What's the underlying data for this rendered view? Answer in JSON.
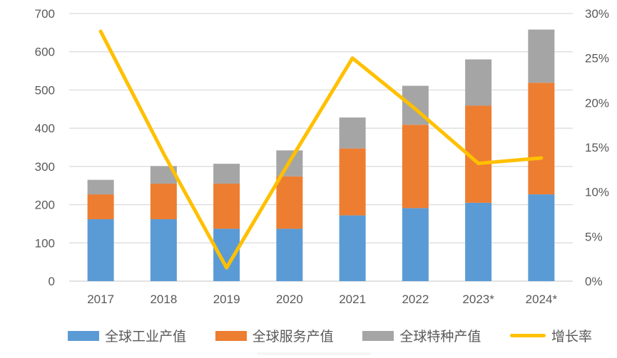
{
  "chart_data": {
    "type": "combo",
    "bar_mode": "stacked-column",
    "title": "",
    "categories": [
      "2017",
      "2018",
      "2019",
      "2020",
      "2021",
      "2022",
      "2023*",
      "2024*"
    ],
    "series": [
      {
        "name": "全球工业产值",
        "type": "bar",
        "color": "#5B9BD5",
        "axis": "left",
        "values": [
          162,
          162,
          137,
          137,
          172,
          191,
          205,
          227
        ]
      },
      {
        "name": "全球服务产值",
        "type": "bar",
        "color": "#ED7D31",
        "axis": "left",
        "values": [
          65,
          93,
          118,
          137,
          175,
          218,
          254,
          292
        ]
      },
      {
        "name": "全球特种产值",
        "type": "bar",
        "color": "#A5A5A5",
        "axis": "left",
        "values": [
          38,
          46,
          52,
          68,
          81,
          102,
          121,
          139
        ]
      },
      {
        "name": "增长率",
        "type": "line",
        "color": "#FFC000",
        "axis": "right",
        "values": [
          28,
          14.3,
          1.5,
          13.4,
          25,
          19.3,
          13.2,
          13.8
        ],
        "unit": "%"
      }
    ],
    "stacked_totals": [
      265,
      301,
      307,
      342,
      428,
      511,
      580,
      658
    ],
    "left_axis": {
      "min": 0,
      "max": 700,
      "step": 100,
      "ticks": [
        "0",
        "100",
        "200",
        "300",
        "400",
        "500",
        "600",
        "700"
      ]
    },
    "right_axis": {
      "min": 0,
      "max": 30,
      "step": 5,
      "ticks": [
        "0%",
        "5%",
        "10%",
        "15%",
        "20%",
        "25%",
        "30%"
      ]
    },
    "legend": {
      "position": "bottom",
      "items": [
        {
          "label": "全球工业产值",
          "swatch": "bar",
          "color": "#5B9BD5"
        },
        {
          "label": "全球服务产值",
          "swatch": "bar",
          "color": "#ED7D31"
        },
        {
          "label": "全球特种产值",
          "swatch": "bar",
          "color": "#A5A5A5"
        },
        {
          "label": "增长率",
          "swatch": "line",
          "color": "#FFC000"
        }
      ]
    },
    "grid": "horizontal",
    "colors": {
      "gridline": "#D9D9D9",
      "axis_text": "#595959",
      "background": "#FFFFFF"
    }
  }
}
